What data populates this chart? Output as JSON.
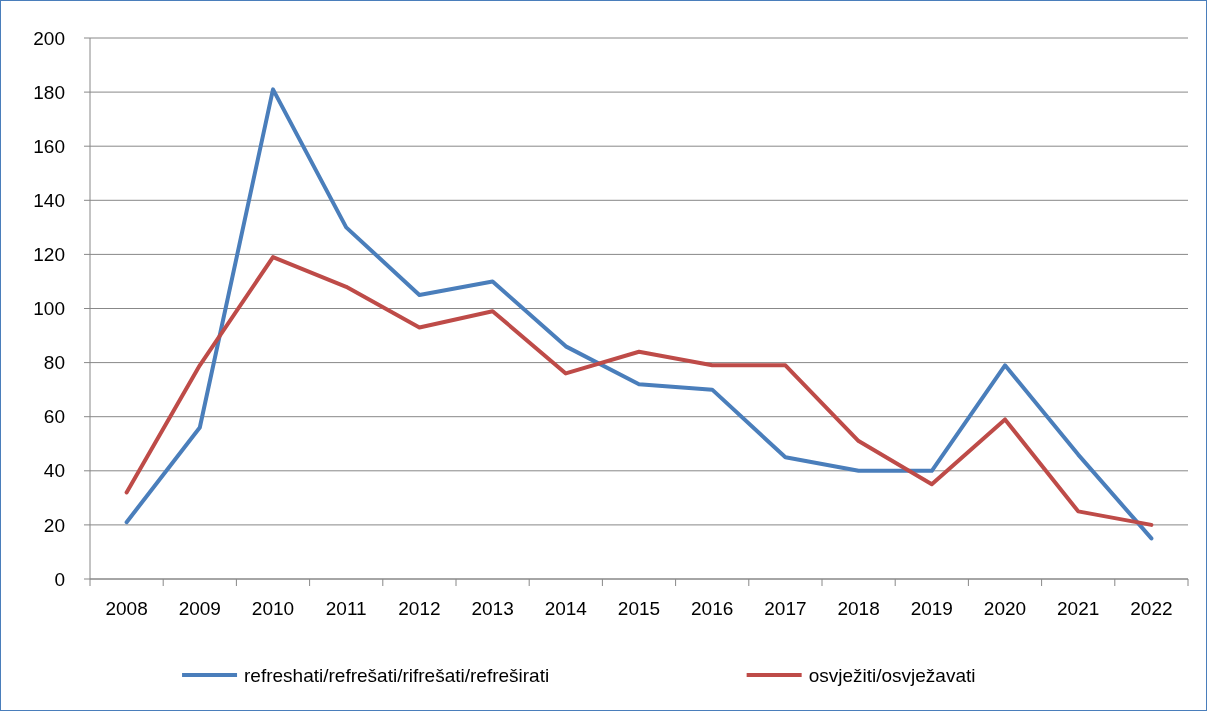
{
  "chart_data": {
    "type": "line",
    "categories": [
      "2008",
      "2009",
      "2010",
      "2011",
      "2012",
      "2013",
      "2014",
      "2015",
      "2016",
      "2017",
      "2018",
      "2019",
      "2020",
      "2021",
      "2022"
    ],
    "series": [
      {
        "name": "refreshati/refrešati/rifrešati/refreširati",
        "color": "#4a7ebb",
        "values": [
          21,
          56,
          181,
          130,
          105,
          110,
          86,
          72,
          70,
          45,
          40,
          40,
          79,
          46,
          15
        ]
      },
      {
        "name": "osvježiti/osvježavati",
        "color": "#be4b48",
        "values": [
          32,
          79,
          119,
          108,
          93,
          99,
          76,
          84,
          79,
          79,
          51,
          35,
          59,
          25,
          20
        ]
      }
    ],
    "ylim": [
      0,
      200
    ],
    "yticks": [
      0,
      20,
      40,
      60,
      80,
      100,
      120,
      140,
      160,
      180,
      200
    ],
    "grid": "y",
    "legend": "bottom",
    "marker": "none",
    "line_style": "solid"
  }
}
